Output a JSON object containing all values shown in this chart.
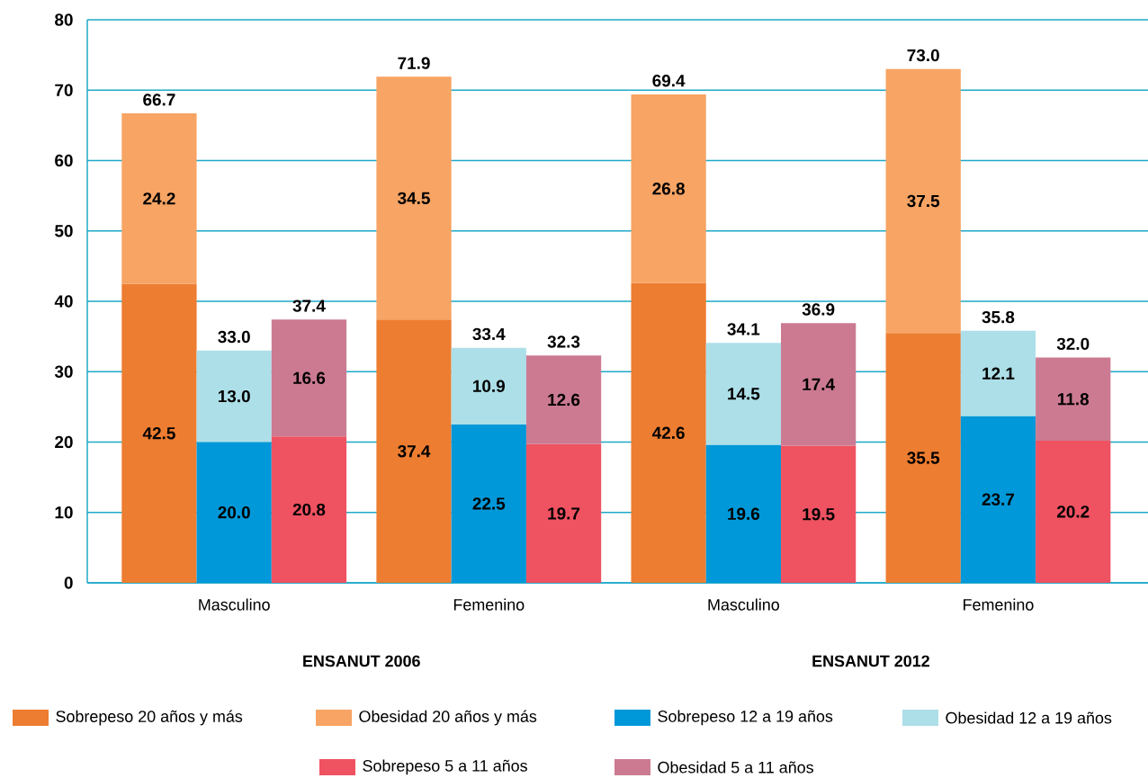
{
  "chart_data": {
    "type": "bar",
    "stacked": true,
    "categories": [
      null,
      "Masculino",
      null,
      null,
      "Femenino",
      null,
      null,
      "Masculino",
      null,
      null,
      "Femenino",
      null
    ],
    "series": [
      {
        "name": "Sobrepeso 20 años y más",
        "color": "#ed7d31",
        "values": [
          42.5,
          null,
          null,
          37.4,
          null,
          null,
          42.6,
          null,
          null,
          35.5,
          null,
          null
        ],
        "value_labels": [
          "42.5",
          null,
          null,
          "37.4",
          null,
          null,
          "42.6",
          null,
          null,
          "35.5",
          null,
          null
        ]
      },
      {
        "name": "Obesidad 20 años y más",
        "color": "#f7a464",
        "values": [
          24.2,
          null,
          null,
          34.5,
          null,
          null,
          26.8,
          null,
          null,
          37.5,
          null,
          null
        ],
        "value_labels": [
          "24.2",
          null,
          null,
          "34.5",
          null,
          null,
          "26.8",
          null,
          null,
          "37.5",
          null,
          null
        ]
      },
      {
        "name": "Sobrepeso 12 a 19 años",
        "color": "#0098d8",
        "values": [
          null,
          20.0,
          null,
          null,
          22.5,
          null,
          null,
          19.6,
          null,
          null,
          23.7,
          null
        ],
        "value_labels": [
          null,
          "20.0",
          null,
          null,
          "22.5",
          null,
          null,
          "19.6",
          null,
          null,
          "23.7",
          null
        ]
      },
      {
        "name": "Obesidad 12 a 19 años",
        "color": "#addfe8",
        "values": [
          null,
          13.0,
          null,
          null,
          10.9,
          null,
          null,
          14.5,
          null,
          null,
          12.1,
          null
        ],
        "value_labels": [
          null,
          "13.0",
          null,
          null,
          "10.9",
          null,
          null,
          "14.5",
          null,
          null,
          "12.1",
          null
        ]
      },
      {
        "name": "Sobrepeso 5 a 11 años",
        "color": "#ef5261",
        "values": [
          null,
          null,
          20.8,
          null,
          null,
          19.7,
          null,
          null,
          19.5,
          null,
          null,
          20.2
        ],
        "value_labels": [
          null,
          null,
          "20.8",
          null,
          null,
          "19.7",
          null,
          null,
          "19.5",
          null,
          null,
          "20.2"
        ]
      },
      {
        "name": "Obesidad 5 a 11 años",
        "color": "#cc7a92",
        "values": [
          null,
          null,
          16.6,
          null,
          null,
          12.6,
          null,
          null,
          17.4,
          null,
          null,
          11.8
        ],
        "value_labels": [
          null,
          null,
          "16.6",
          null,
          null,
          "12.6",
          null,
          null,
          "17.4",
          null,
          null,
          "11.8"
        ]
      }
    ],
    "totals": [
      "66.7",
      "33.0",
      "37.4",
      "71.9",
      "33.4",
      "32.3",
      "69.4",
      "34.1",
      "36.9",
      "73.0",
      "35.8",
      "32.0"
    ],
    "annotations": [
      "ENSANUT 2006",
      "ENSANUT 2012"
    ],
    "ylim": [
      0,
      80
    ],
    "yticks": [
      0,
      10,
      20,
      30,
      40,
      50,
      60,
      70,
      80
    ],
    "grid": "y",
    "legend": "bottom"
  }
}
